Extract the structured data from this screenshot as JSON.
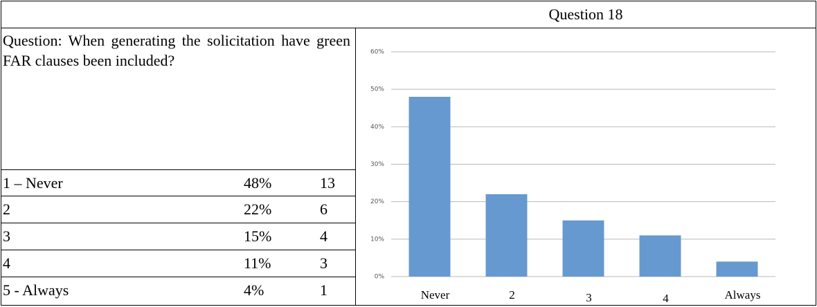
{
  "header": {
    "title": "Question 18"
  },
  "question": "Question: When generating the solicitation have green FAR clauses been included?",
  "table": {
    "rows": [
      [
        "1 – Never",
        "48%",
        13
      ],
      [
        "2",
        "22%",
        6
      ],
      [
        "3",
        "15%",
        4
      ],
      [
        "4",
        "11%",
        3
      ],
      [
        "5 - Always",
        "4%",
        1
      ]
    ]
  },
  "chart_data": {
    "type": "bar",
    "categories": [
      "Never",
      "2",
      "3",
      "4",
      "Always"
    ],
    "values": [
      48,
      22,
      15,
      11,
      4
    ],
    "color": "#6699cf",
    "ylim": [
      0,
      60
    ],
    "yticks": [
      {
        "value": 0,
        "label": "0%"
      },
      {
        "value": 10,
        "label": "10%"
      },
      {
        "value": 20,
        "label": "20%"
      },
      {
        "value": 30,
        "label": "30%"
      },
      {
        "value": 40,
        "label": "40%"
      },
      {
        "value": 50,
        "label": "50%"
      },
      {
        "value": 60,
        "label": "60%"
      }
    ],
    "grid": true
  }
}
